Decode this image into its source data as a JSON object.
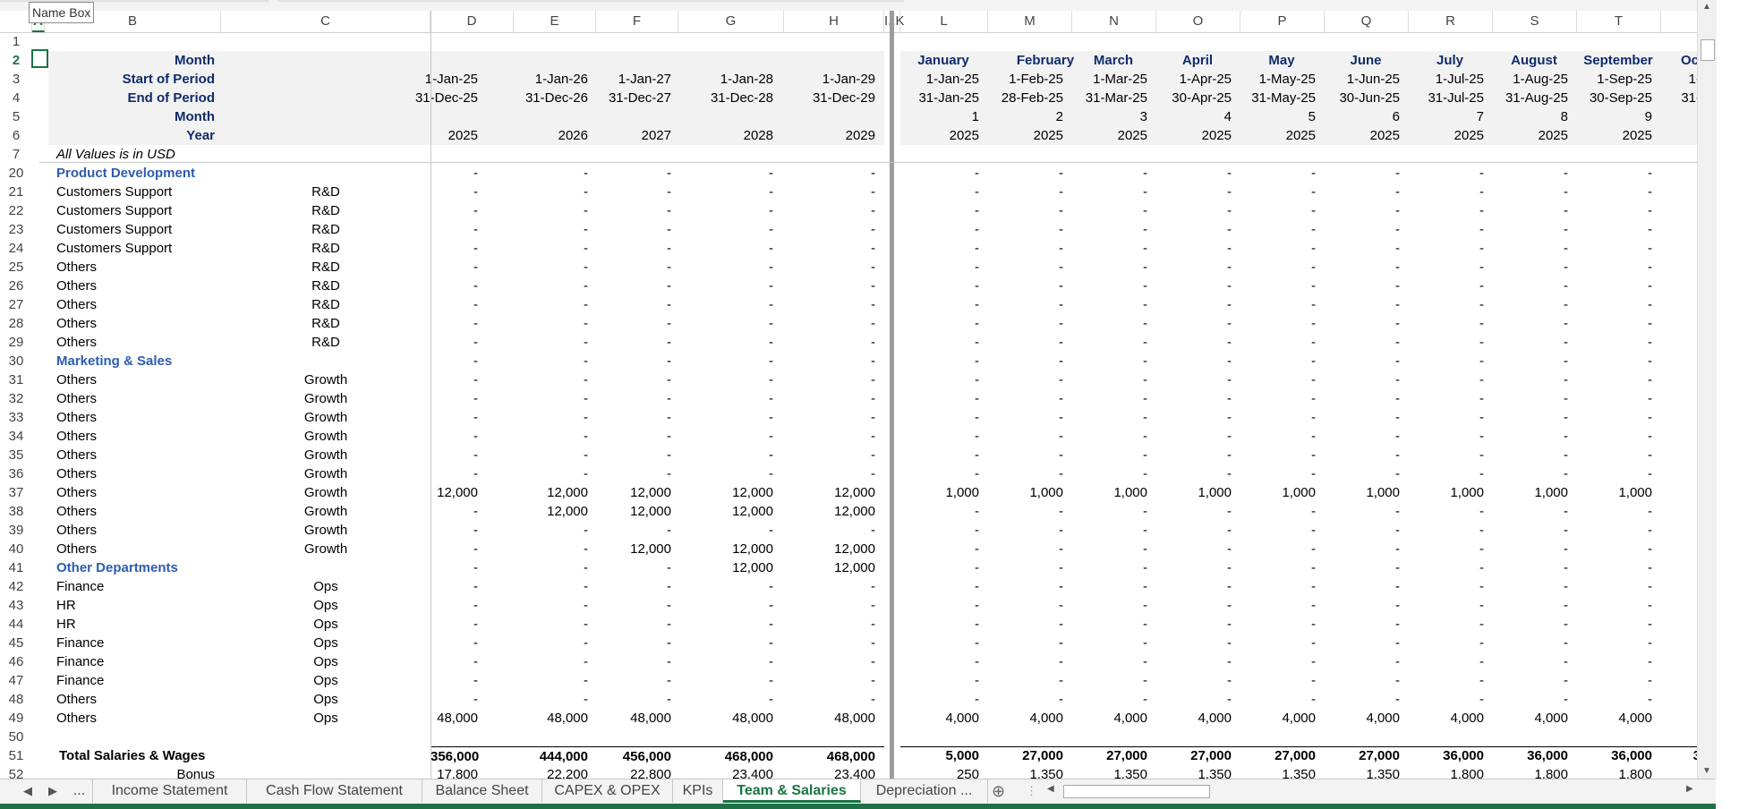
{
  "namebox": "Name Box",
  "columns": [
    "A",
    "B",
    "C",
    "D",
    "E",
    "F",
    "G",
    "H",
    "I..K",
    "L",
    "M",
    "N",
    "O",
    "P",
    "Q",
    "R",
    "S",
    "T"
  ],
  "period_header": {
    "labels": [
      "Month",
      "Start of Period",
      "End of Period",
      "Month",
      "Year"
    ],
    "annual_start": [
      "1-Jan-25",
      "1-Jan-26",
      "1-Jan-27",
      "1-Jan-28",
      "1-Jan-29"
    ],
    "annual_end": [
      "31-Dec-25",
      "31-Dec-26",
      "31-Dec-27",
      "31-Dec-28",
      "31-Dec-29"
    ],
    "annual_year": [
      "2025",
      "2026",
      "2027",
      "2028",
      "2029"
    ],
    "month_names": [
      "January",
      "February",
      "March",
      "April",
      "May",
      "June",
      "July",
      "August",
      "September",
      "Oc"
    ],
    "month_start": [
      "1-Jan-25",
      "1-Feb-25",
      "1-Mar-25",
      "1-Apr-25",
      "1-May-25",
      "1-Jun-25",
      "1-Jul-25",
      "1-Aug-25",
      "1-Sep-25",
      "1-"
    ],
    "month_end": [
      "31-Jan-25",
      "28-Feb-25",
      "31-Mar-25",
      "30-Apr-25",
      "31-May-25",
      "30-Jun-25",
      "31-Jul-25",
      "31-Aug-25",
      "30-Sep-25",
      "31-"
    ],
    "month_num": [
      "1",
      "2",
      "3",
      "4",
      "5",
      "6",
      "7",
      "8",
      "9"
    ],
    "month_year": [
      "2025",
      "2025",
      "2025",
      "2025",
      "2025",
      "2025",
      "2025",
      "2025",
      "2025"
    ]
  },
  "units_note": "All Values is in USD",
  "rows": [
    {
      "n": "20",
      "b": "Product Development",
      "section": true,
      "c": "",
      "annual": [
        "-",
        "-",
        "-",
        "-",
        "-"
      ],
      "monthly": [
        "-",
        "-",
        "-",
        "-",
        "-",
        "-",
        "-",
        "-",
        "-"
      ]
    },
    {
      "n": "21",
      "b": "Customers Support",
      "c": "R&D",
      "annual": [
        "-",
        "-",
        "-",
        "-",
        "-"
      ],
      "monthly": [
        "-",
        "-",
        "-",
        "-",
        "-",
        "-",
        "-",
        "-",
        "-"
      ]
    },
    {
      "n": "22",
      "b": "Customers Support",
      "c": "R&D",
      "annual": [
        "-",
        "-",
        "-",
        "-",
        "-"
      ],
      "monthly": [
        "-",
        "-",
        "-",
        "-",
        "-",
        "-",
        "-",
        "-",
        "-"
      ]
    },
    {
      "n": "23",
      "b": "Customers Support",
      "c": "R&D",
      "annual": [
        "-",
        "-",
        "-",
        "-",
        "-"
      ],
      "monthly": [
        "-",
        "-",
        "-",
        "-",
        "-",
        "-",
        "-",
        "-",
        "-"
      ]
    },
    {
      "n": "24",
      "b": "Customers Support",
      "c": "R&D",
      "annual": [
        "-",
        "-",
        "-",
        "-",
        "-"
      ],
      "monthly": [
        "-",
        "-",
        "-",
        "-",
        "-",
        "-",
        "-",
        "-",
        "-"
      ]
    },
    {
      "n": "25",
      "b": "Others",
      "c": "R&D",
      "annual": [
        "-",
        "-",
        "-",
        "-",
        "-"
      ],
      "monthly": [
        "-",
        "-",
        "-",
        "-",
        "-",
        "-",
        "-",
        "-",
        "-"
      ]
    },
    {
      "n": "26",
      "b": "Others",
      "c": "R&D",
      "annual": [
        "-",
        "-",
        "-",
        "-",
        "-"
      ],
      "monthly": [
        "-",
        "-",
        "-",
        "-",
        "-",
        "-",
        "-",
        "-",
        "-"
      ]
    },
    {
      "n": "27",
      "b": "Others",
      "c": "R&D",
      "annual": [
        "-",
        "-",
        "-",
        "-",
        "-"
      ],
      "monthly": [
        "-",
        "-",
        "-",
        "-",
        "-",
        "-",
        "-",
        "-",
        "-"
      ]
    },
    {
      "n": "28",
      "b": "Others",
      "c": "R&D",
      "annual": [
        "-",
        "-",
        "-",
        "-",
        "-"
      ],
      "monthly": [
        "-",
        "-",
        "-",
        "-",
        "-",
        "-",
        "-",
        "-",
        "-"
      ]
    },
    {
      "n": "29",
      "b": "Others",
      "c": "R&D",
      "annual": [
        "-",
        "-",
        "-",
        "-",
        "-"
      ],
      "monthly": [
        "-",
        "-",
        "-",
        "-",
        "-",
        "-",
        "-",
        "-",
        "-"
      ]
    },
    {
      "n": "30",
      "b": "Marketing & Sales",
      "section": true,
      "c": "",
      "annual": [
        "-",
        "-",
        "-",
        "-",
        "-"
      ],
      "monthly": [
        "-",
        "-",
        "-",
        "-",
        "-",
        "-",
        "-",
        "-",
        "-"
      ]
    },
    {
      "n": "31",
      "b": "Others",
      "c": "Growth",
      "annual": [
        "-",
        "-",
        "-",
        "-",
        "-"
      ],
      "monthly": [
        "-",
        "-",
        "-",
        "-",
        "-",
        "-",
        "-",
        "-",
        "-"
      ]
    },
    {
      "n": "32",
      "b": "Others",
      "c": "Growth",
      "annual": [
        "-",
        "-",
        "-",
        "-",
        "-"
      ],
      "monthly": [
        "-",
        "-",
        "-",
        "-",
        "-",
        "-",
        "-",
        "-",
        "-"
      ]
    },
    {
      "n": "33",
      "b": "Others",
      "c": "Growth",
      "annual": [
        "-",
        "-",
        "-",
        "-",
        "-"
      ],
      "monthly": [
        "-",
        "-",
        "-",
        "-",
        "-",
        "-",
        "-",
        "-",
        "-"
      ]
    },
    {
      "n": "34",
      "b": "Others",
      "c": "Growth",
      "annual": [
        "-",
        "-",
        "-",
        "-",
        "-"
      ],
      "monthly": [
        "-",
        "-",
        "-",
        "-",
        "-",
        "-",
        "-",
        "-",
        "-"
      ]
    },
    {
      "n": "35",
      "b": "Others",
      "c": "Growth",
      "annual": [
        "-",
        "-",
        "-",
        "-",
        "-"
      ],
      "monthly": [
        "-",
        "-",
        "-",
        "-",
        "-",
        "-",
        "-",
        "-",
        "-"
      ]
    },
    {
      "n": "36",
      "b": "Others",
      "c": "Growth",
      "annual": [
        "-",
        "-",
        "-",
        "-",
        "-"
      ],
      "monthly": [
        "-",
        "-",
        "-",
        "-",
        "-",
        "-",
        "-",
        "-",
        "-"
      ]
    },
    {
      "n": "37",
      "b": "Others",
      "c": "Growth",
      "annual": [
        "12,000",
        "12,000",
        "12,000",
        "12,000",
        "12,000"
      ],
      "monthly": [
        "1,000",
        "1,000",
        "1,000",
        "1,000",
        "1,000",
        "1,000",
        "1,000",
        "1,000",
        "1,000"
      ]
    },
    {
      "n": "38",
      "b": "Others",
      "c": "Growth",
      "annual": [
        "-",
        "12,000",
        "12,000",
        "12,000",
        "12,000"
      ],
      "monthly": [
        "-",
        "-",
        "-",
        "-",
        "-",
        "-",
        "-",
        "-",
        "-"
      ]
    },
    {
      "n": "39",
      "b": "Others",
      "c": "Growth",
      "annual": [
        "-",
        "-",
        "-",
        "-",
        "-"
      ],
      "monthly": [
        "-",
        "-",
        "-",
        "-",
        "-",
        "-",
        "-",
        "-",
        "-"
      ]
    },
    {
      "n": "40",
      "b": "Others",
      "c": "Growth",
      "annual": [
        "-",
        "-",
        "12,000",
        "12,000",
        "12,000"
      ],
      "monthly": [
        "-",
        "-",
        "-",
        "-",
        "-",
        "-",
        "-",
        "-",
        "-"
      ]
    },
    {
      "n": "41",
      "b": "Other Departments",
      "section": true,
      "c": "",
      "annual": [
        "-",
        "-",
        "-",
        "12,000",
        "12,000"
      ],
      "monthly": [
        "-",
        "-",
        "-",
        "-",
        "-",
        "-",
        "-",
        "-",
        "-"
      ]
    },
    {
      "n": "42",
      "b": "Finance",
      "c": "Ops",
      "annual": [
        "-",
        "-",
        "-",
        "-",
        "-"
      ],
      "monthly": [
        "-",
        "-",
        "-",
        "-",
        "-",
        "-",
        "-",
        "-",
        "-"
      ]
    },
    {
      "n": "43",
      "b": "HR",
      "c": "Ops",
      "annual": [
        "-",
        "-",
        "-",
        "-",
        "-"
      ],
      "monthly": [
        "-",
        "-",
        "-",
        "-",
        "-",
        "-",
        "-",
        "-",
        "-"
      ]
    },
    {
      "n": "44",
      "b": "HR",
      "c": "Ops",
      "annual": [
        "-",
        "-",
        "-",
        "-",
        "-"
      ],
      "monthly": [
        "-",
        "-",
        "-",
        "-",
        "-",
        "-",
        "-",
        "-",
        "-"
      ]
    },
    {
      "n": "45",
      "b": "Finance",
      "c": "Ops",
      "annual": [
        "-",
        "-",
        "-",
        "-",
        "-"
      ],
      "monthly": [
        "-",
        "-",
        "-",
        "-",
        "-",
        "-",
        "-",
        "-",
        "-"
      ]
    },
    {
      "n": "46",
      "b": "Finance",
      "c": "Ops",
      "annual": [
        "-",
        "-",
        "-",
        "-",
        "-"
      ],
      "monthly": [
        "-",
        "-",
        "-",
        "-",
        "-",
        "-",
        "-",
        "-",
        "-"
      ]
    },
    {
      "n": "47",
      "b": "Finance",
      "c": "Ops",
      "annual": [
        "-",
        "-",
        "-",
        "-",
        "-"
      ],
      "monthly": [
        "-",
        "-",
        "-",
        "-",
        "-",
        "-",
        "-",
        "-",
        "-"
      ]
    },
    {
      "n": "48",
      "b": "Others",
      "c": "Ops",
      "annual": [
        "-",
        "-",
        "-",
        "-",
        "-"
      ],
      "monthly": [
        "-",
        "-",
        "-",
        "-",
        "-",
        "-",
        "-",
        "-",
        "-"
      ]
    },
    {
      "n": "49",
      "b": "Others",
      "c": "Ops",
      "annual": [
        "48,000",
        "48,000",
        "48,000",
        "48,000",
        "48,000"
      ],
      "monthly": [
        "4,000",
        "4,000",
        "4,000",
        "4,000",
        "4,000",
        "4,000",
        "4,000",
        "4,000",
        "4,000"
      ]
    },
    {
      "n": "50",
      "b": "",
      "c": "",
      "annual": [
        "",
        "",
        "",
        "",
        ""
      ],
      "monthly": [
        "",
        "",
        "",
        "",
        "",
        "",
        "",
        "",
        ""
      ]
    },
    {
      "n": "51",
      "b": "Total Salaries & Wages",
      "total": true,
      "c": "",
      "annual": [
        "356,000",
        "444,000",
        "456,000",
        "468,000",
        "468,000"
      ],
      "monthly": [
        "5,000",
        "27,000",
        "27,000",
        "27,000",
        "27,000",
        "27,000",
        "36,000",
        "36,000",
        "36,000",
        "3"
      ]
    },
    {
      "n": "52",
      "b": "Bonus",
      "bonus": true,
      "c": "",
      "annual": [
        "17,800",
        "22,200",
        "22,800",
        "23,400",
        "23,400"
      ],
      "monthly": [
        "250",
        "1,350",
        "1,350",
        "1,350",
        "1,350",
        "1,350",
        "1,800",
        "1,800",
        "1,800"
      ]
    }
  ],
  "tabs": [
    "...",
    "Income Statement",
    "Cash Flow Statement",
    "Balance Sheet",
    "CAPEX & OPEX",
    "KPIs",
    "Team & Salaries",
    "Depreciation ..."
  ],
  "active_tab": "Team & Salaries",
  "accent": "#1a7343",
  "section_color": "#2e5cae",
  "header_color": "#0f2b6b"
}
